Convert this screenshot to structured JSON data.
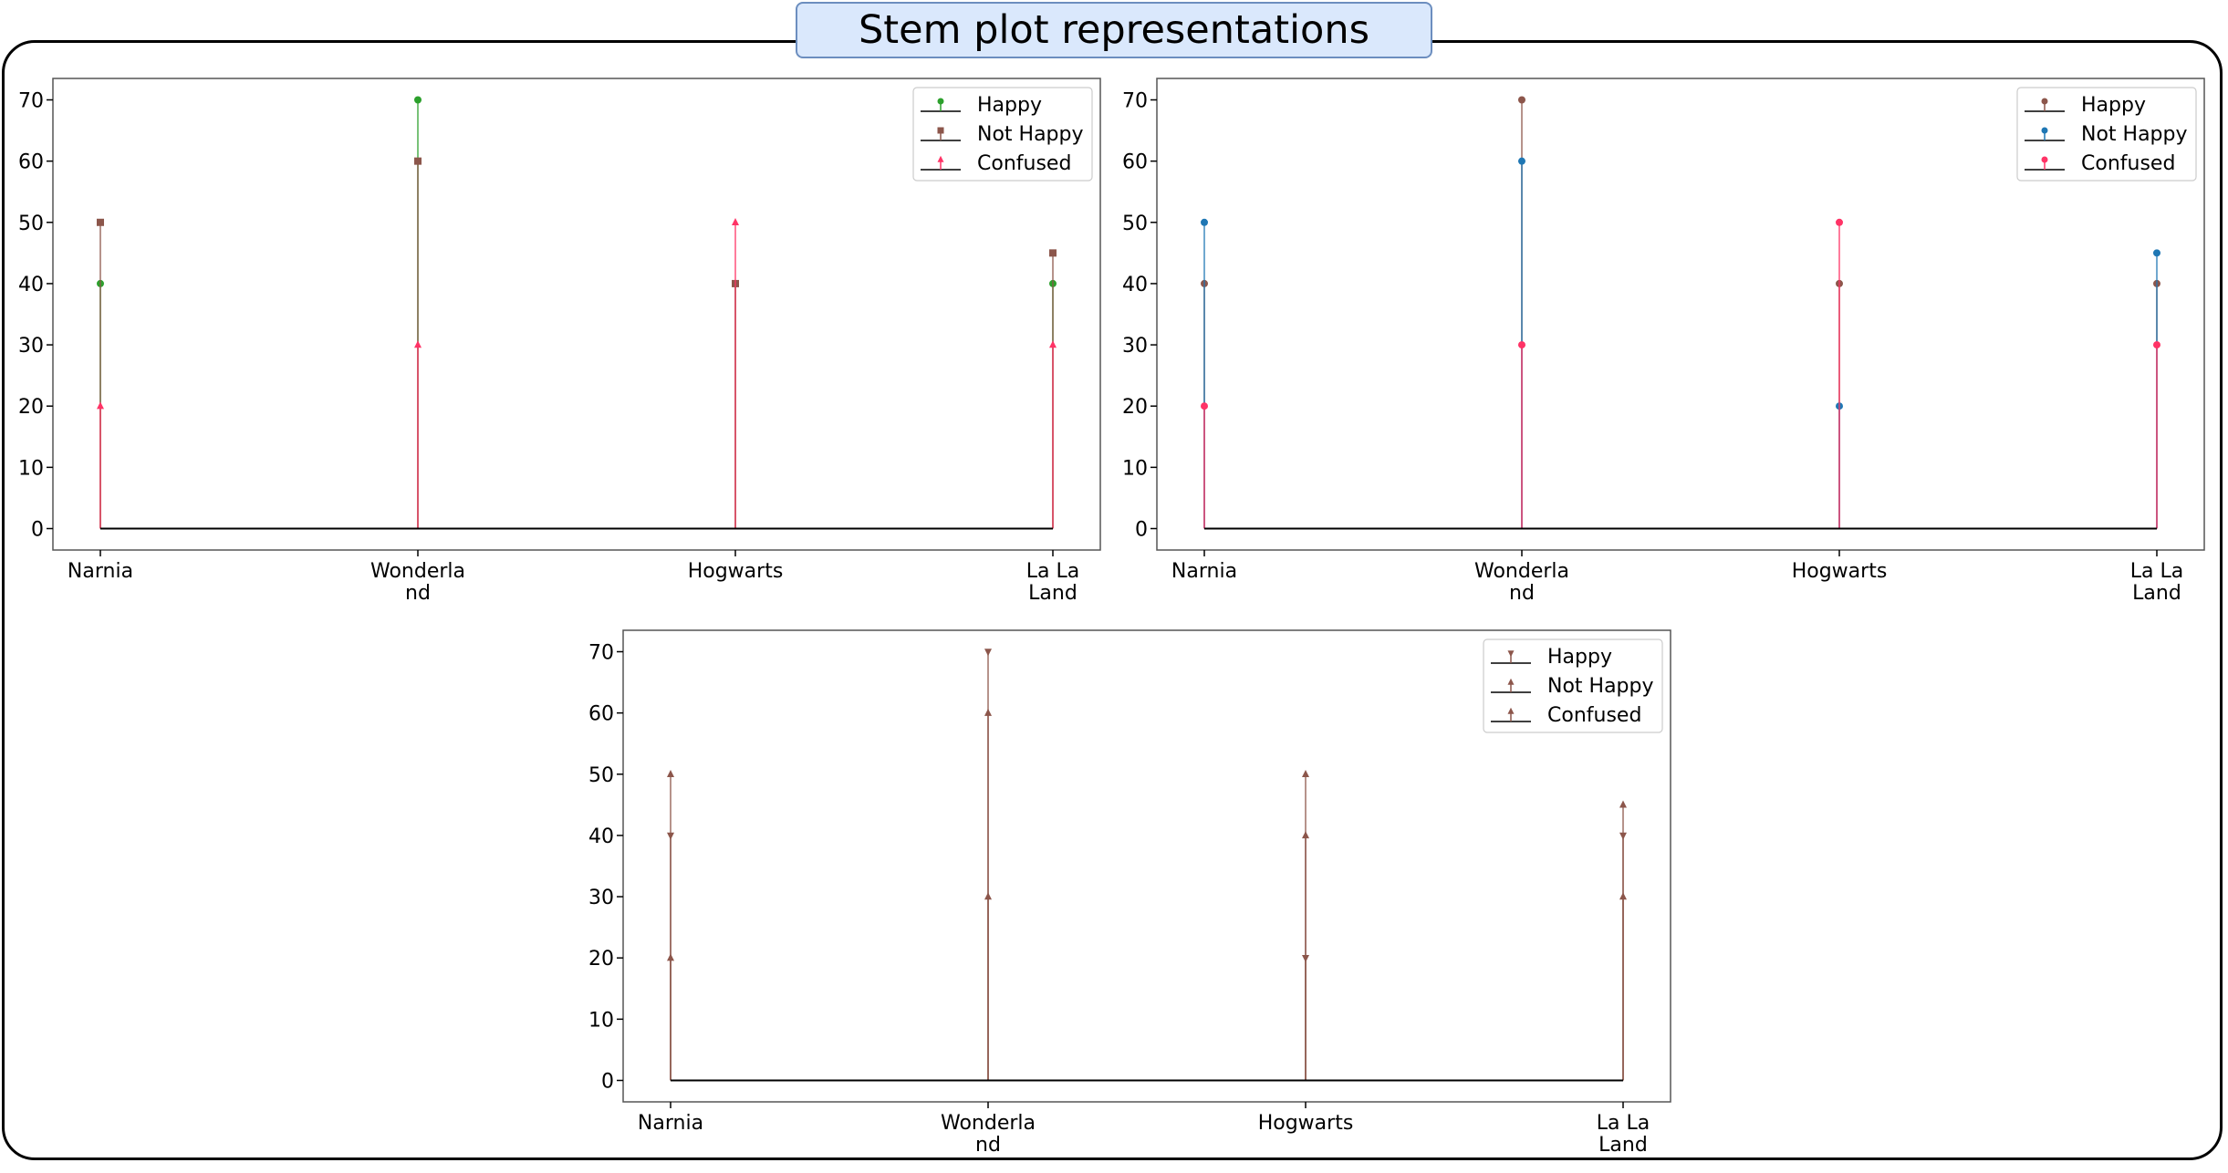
{
  "title": "Stem plot representations",
  "chart_data": [
    {
      "type": "stem",
      "categories": [
        "Narnia",
        "Wonderland",
        "Hogwarts",
        "La La Land"
      ],
      "category_labels": [
        [
          "Narnia"
        ],
        [
          "Wonderla",
          "nd"
        ],
        [
          "Hogwarts"
        ],
        [
          "La La",
          "Land"
        ]
      ],
      "yticks": [
        "0",
        "10",
        "20",
        "30",
        "40",
        "50",
        "60",
        "70"
      ],
      "ylim": [
        -3.5,
        73.5
      ],
      "grid": false,
      "legend_position": "upper right",
      "series": [
        {
          "name": "Happy",
          "values": [
            40,
            70,
            40,
            40
          ],
          "color": "#2ca02c",
          "marker": "circle"
        },
        {
          "name": "Not Happy",
          "values": [
            50,
            60,
            40,
            45
          ],
          "color": "#8c564b",
          "marker": "square"
        },
        {
          "name": "Confused",
          "values": [
            20,
            30,
            50,
            30
          ],
          "color": "#ff3366",
          "marker": "triangle"
        }
      ],
      "baseline_color": "#000000"
    },
    {
      "type": "stem",
      "categories": [
        "Narnia",
        "Wonderland",
        "Hogwarts",
        "La La Land"
      ],
      "category_labels": [
        [
          "Narnia"
        ],
        [
          "Wonderla",
          "nd"
        ],
        [
          "Hogwarts"
        ],
        [
          "La La",
          "Land"
        ]
      ],
      "yticks": [
        "0",
        "10",
        "20",
        "30",
        "40",
        "50",
        "60",
        "70"
      ],
      "ylim": [
        -3.5,
        73.5
      ],
      "grid": false,
      "legend_position": "upper right",
      "series": [
        {
          "name": "Happy",
          "values": [
            40,
            70,
            40,
            40
          ],
          "color": "#8c564b",
          "marker": "circle"
        },
        {
          "name": "Not Happy",
          "values": [
            50,
            60,
            20,
            45
          ],
          "color": "#1f77b4",
          "marker": "circle"
        },
        {
          "name": "Confused",
          "values": [
            20,
            30,
            50,
            30
          ],
          "color": "#ff3366",
          "marker": "circle"
        }
      ],
      "baseline_color": "#000000"
    },
    {
      "type": "stem",
      "categories": [
        "Narnia",
        "Wonderland",
        "Hogwarts",
        "La La Land"
      ],
      "category_labels": [
        [
          "Narnia"
        ],
        [
          "Wonderla",
          "nd"
        ],
        [
          "Hogwarts"
        ],
        [
          "La La",
          "Land"
        ]
      ],
      "yticks": [
        "0",
        "10",
        "20",
        "30",
        "40",
        "50",
        "60",
        "70"
      ],
      "ylim": [
        -3.5,
        73.5
      ],
      "grid": false,
      "legend_position": "upper right",
      "series": [
        {
          "name": "Happy",
          "values": [
            40,
            70,
            20,
            40
          ],
          "color": "#8c564b",
          "marker": "triangle-down"
        },
        {
          "name": "Not Happy",
          "values": [
            50,
            60,
            50,
            45
          ],
          "color": "#8c564b",
          "marker": "triangle"
        },
        {
          "name": "Confused",
          "values": [
            20,
            30,
            40,
            30
          ],
          "color": "#8c564b",
          "marker": "triangle"
        }
      ],
      "baseline_color": "#000000"
    }
  ]
}
